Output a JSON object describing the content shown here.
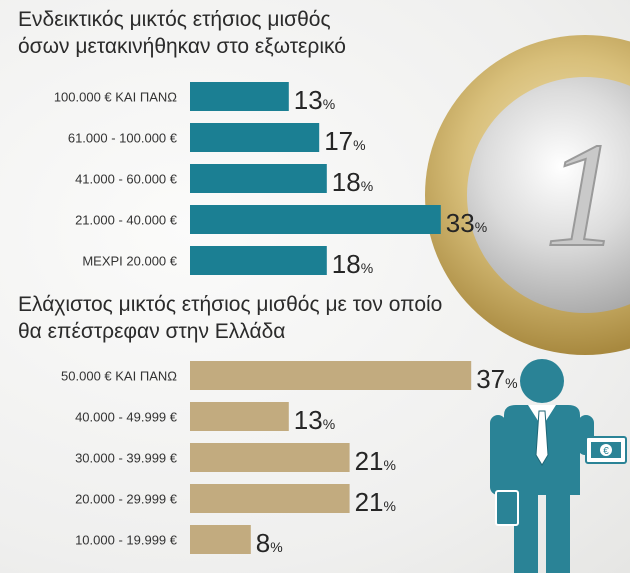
{
  "titles": {
    "top_line1": "Ενδεικτικός μικτός ετήσιος μισθός",
    "top_line2": "όσων μετακινήθηκαν στο εξωτερικό",
    "bottom_line1": "Ελάχιστος μικτός ετήσιος μισθός με τον οποίο",
    "bottom_line2": "θα επέστρεφαν στην Ελλάδα"
  },
  "coin_text": "1",
  "colors": {
    "teal": "#1b7f93",
    "tan": "#c2ab7f",
    "figure": "#2a8396",
    "text": "#262626"
  },
  "chart_data": [
    {
      "type": "bar",
      "orientation": "horizontal",
      "title": "Ενδεικτικός μικτός ετήσιος μισθός όσων μετακινήθηκαν στο εξωτερικό",
      "categories": [
        "100.000 € ΚΑΙ ΠΑΝΩ",
        "61.000 - 100.000 €",
        "41.000 - 60.000 €",
        "21.000 - 40.000 €",
        "ΜΕΧΡΙ 20.000 €"
      ],
      "values": [
        13,
        17,
        18,
        33,
        18
      ],
      "unit": "%",
      "color": "#1b7f93",
      "xlim": [
        0,
        37
      ]
    },
    {
      "type": "bar",
      "orientation": "horizontal",
      "title": "Ελάχιστος μικτός ετήσιος μισθός με τον οποίο θα επέστρεφαν στην Ελλάδα",
      "categories": [
        "50.000 € ΚΑΙ ΠΑΝΩ",
        "40.000 - 49.999 €",
        "30.000 - 39.999 €",
        "20.000 - 29.999 €",
        "10.000 - 19.999 €"
      ],
      "values": [
        37,
        13,
        21,
        21,
        8
      ],
      "unit": "%",
      "color": "#c2ab7f",
      "xlim": [
        0,
        37
      ]
    }
  ]
}
